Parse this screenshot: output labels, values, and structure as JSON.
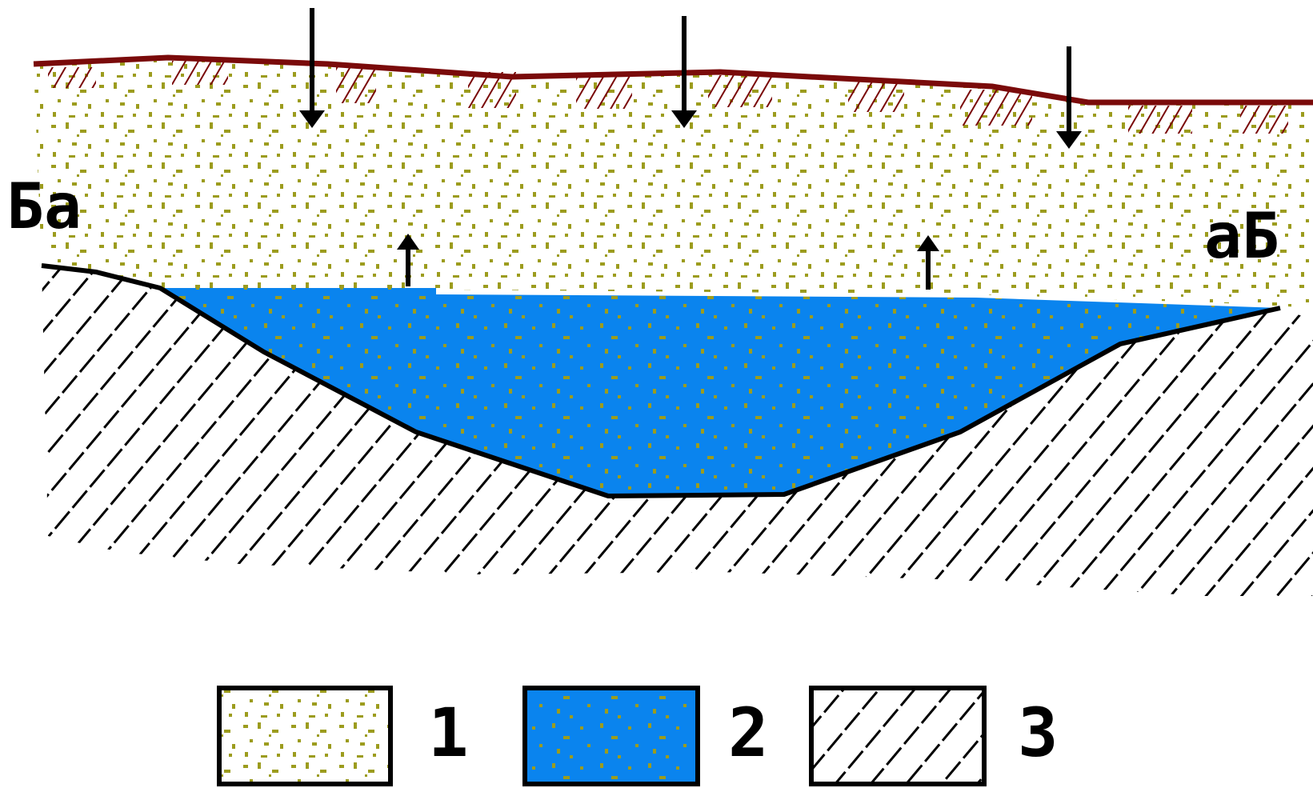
{
  "labels": {
    "left_corner": "Ба",
    "right_corner": "аБ"
  },
  "legend": [
    {
      "number": "1",
      "pattern": "dotted-sand"
    },
    {
      "number": "2",
      "pattern": "water-saturated"
    },
    {
      "number": "3",
      "pattern": "hatched-bedrock"
    }
  ],
  "colors": {
    "surface_line": "#7a0a0a",
    "sand_dots": "#9c9c1e",
    "water": "#0a84ee",
    "hatch": "#000000",
    "background": "#ffffff"
  },
  "icons": {
    "down_arrow": "arrow-down-icon",
    "up_arrow": "arrow-up-icon"
  }
}
